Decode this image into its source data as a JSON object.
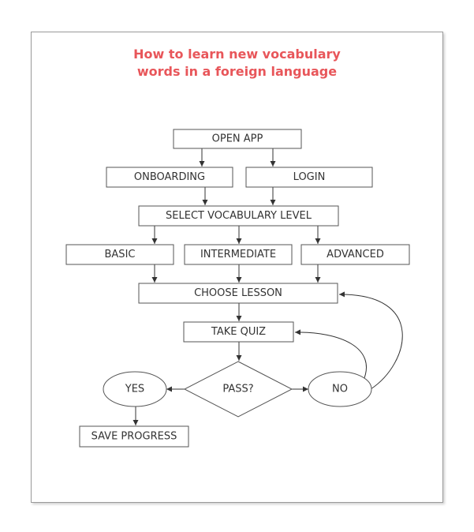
{
  "title": {
    "line1": "How to learn new vocabulary",
    "line2": "words in a foreign language"
  },
  "nodes": {
    "open_app": "OPEN APP",
    "onboarding": "ONBOARDING",
    "login": "LOGIN",
    "select_level": "SELECT VOCABULARY LEVEL",
    "basic": "BASIC",
    "intermediate": "INTERMEDIATE",
    "advanced": "ADVANCED",
    "choose_lesson": "CHOOSE LESSON",
    "take_quiz": "TAKE QUIZ",
    "pass": "PASS?",
    "yes": "YES",
    "no": "NO",
    "save_progress": "SAVE PROGRESS"
  },
  "colors": {
    "title": "#e8565a",
    "border": "#555555",
    "text": "#333333"
  }
}
